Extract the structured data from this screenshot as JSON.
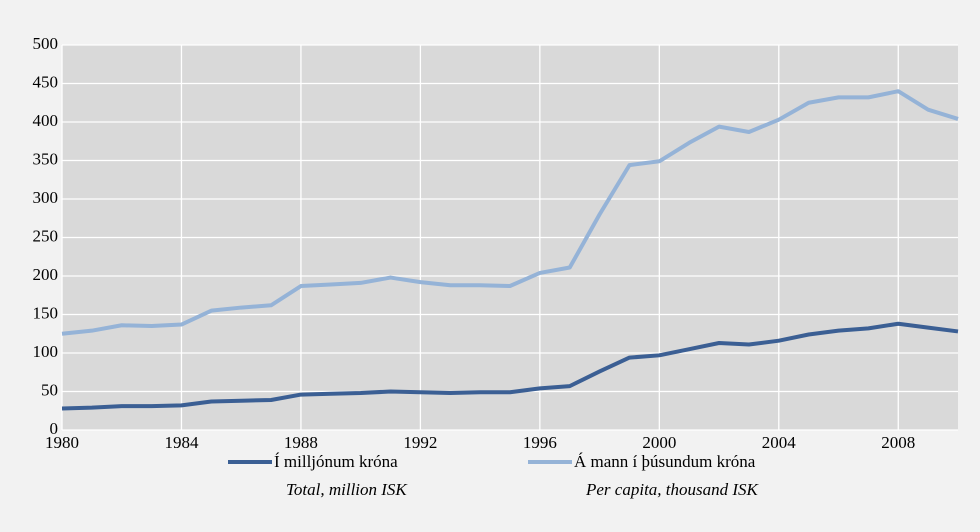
{
  "chart_data": {
    "type": "line",
    "x": [
      1980,
      1981,
      1982,
      1983,
      1984,
      1985,
      1986,
      1987,
      1988,
      1989,
      1990,
      1991,
      1992,
      1993,
      1994,
      1995,
      1996,
      1997,
      1998,
      1999,
      2000,
      2001,
      2002,
      2003,
      2004,
      2005,
      2006,
      2007,
      2008,
      2009,
      2010
    ],
    "series": [
      {
        "name": "Í milljónum króna",
        "subtitle": "Total, million ISK",
        "color": "#3b5f94",
        "values": [
          28,
          29,
          31,
          31,
          32,
          37,
          38,
          39,
          46,
          47,
          48,
          50,
          49,
          48,
          49,
          49,
          54,
          57,
          76,
          94,
          97,
          105,
          113,
          111,
          116,
          124,
          129,
          132,
          138,
          133,
          128
        ]
      },
      {
        "name": "Á mann í þúsundum króna",
        "subtitle": "Per capita, thousand ISK",
        "color": "#95b3d7",
        "values": [
          125,
          129,
          136,
          135,
          137,
          155,
          159,
          162,
          187,
          189,
          191,
          198,
          192,
          188,
          188,
          187,
          204,
          211,
          280,
          344,
          349,
          373,
          394,
          387,
          403,
          425,
          432,
          432,
          440,
          416,
          404
        ]
      }
    ],
    "xlim": [
      1980,
      2010
    ],
    "xticks": [
      1980,
      1984,
      1988,
      1992,
      1996,
      2000,
      2004,
      2008
    ],
    "ylim": [
      0,
      500
    ],
    "yticks": [
      0,
      50,
      100,
      150,
      200,
      250,
      300,
      350,
      400,
      450,
      500
    ],
    "grid": true
  }
}
